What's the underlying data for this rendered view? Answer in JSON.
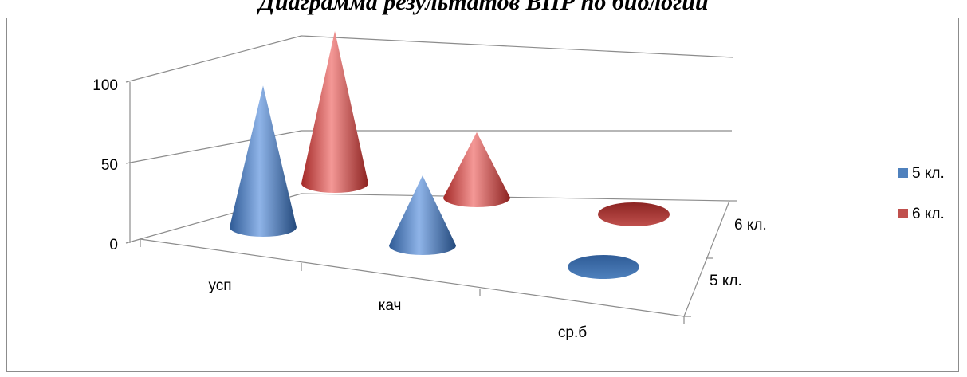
{
  "chart_data": {
    "type": "bar",
    "shape": "cone",
    "title": "Диаграмма результатов ВПР по биологии",
    "categories": [
      "усп",
      "кач",
      "ср.б"
    ],
    "depth_categories": [
      "5 кл.",
      "6 кл."
    ],
    "series": [
      {
        "name": "5 кл.",
        "color": "#4f81bd",
        "values": [
          93,
          46,
          0
        ]
      },
      {
        "name": "6 кл.",
        "color": "#c0504d",
        "values": [
          100,
          43,
          0
        ]
      }
    ],
    "y_ticks": [
      "0",
      "50",
      "100"
    ],
    "ylim": [
      0,
      100
    ],
    "xlabel": "",
    "ylabel": "",
    "grid": true,
    "legend_position": "right"
  }
}
